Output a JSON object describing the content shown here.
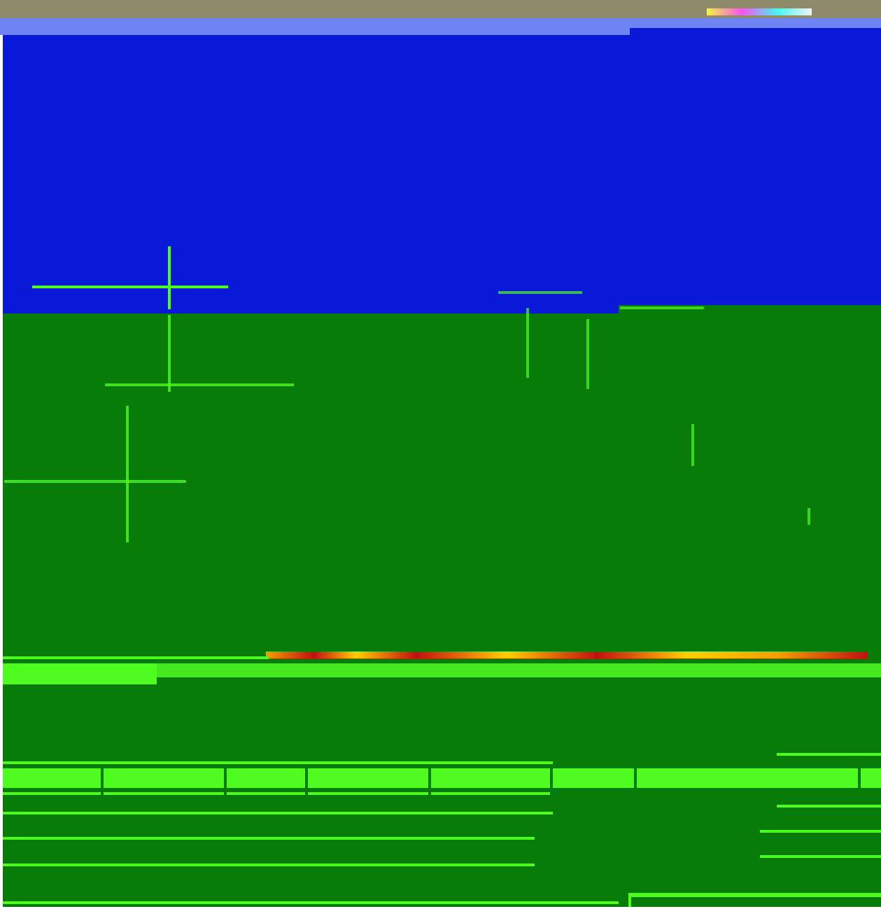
{
  "header": {
    "left_text": "",
    "right_text": ""
  },
  "colors": {
    "blue_field": "#0a19d6",
    "green_field": "#087c08",
    "bright_green": "#4efc22",
    "header_strip": "#8f8a6a",
    "header_bar": "#6e84f2",
    "scan_strip_accent": "#ffd000"
  }
}
